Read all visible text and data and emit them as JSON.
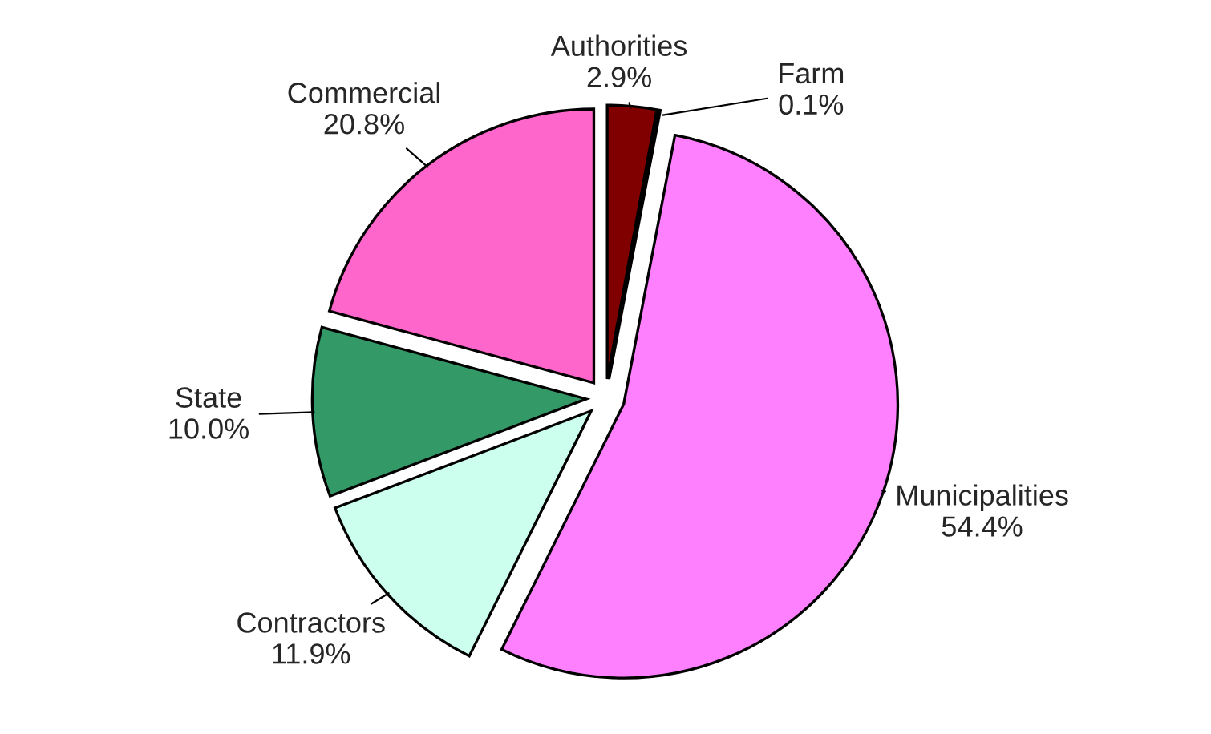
{
  "chart_data": {
    "type": "pie",
    "categories": [
      "Authorities",
      "Farm",
      "Municipalities",
      "Contractors",
      "State",
      "Commercial"
    ],
    "values": [
      2.9,
      0.1,
      54.4,
      11.9,
      10.0,
      20.8
    ],
    "value_labels": [
      "2.9%",
      "0.1%",
      "54.4%",
      "11.9%",
      "10.0%",
      "20.8%"
    ],
    "colors": [
      "#800000",
      "#006633",
      "#ff80ff",
      "#ccffee",
      "#339966",
      "#ff66cc"
    ]
  }
}
